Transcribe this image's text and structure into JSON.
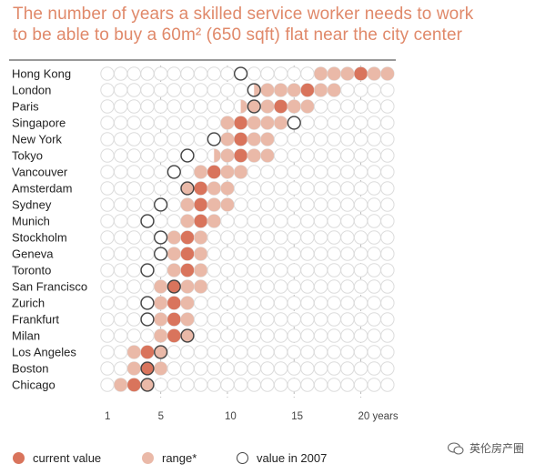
{
  "title_line1": "The number of years a skilled service worker needs to work",
  "title_line2": "to be able to buy a 60m² (650 sqft) flat near the city center",
  "colors": {
    "current": "#d9745c",
    "range": "#eab9a8",
    "empty_stroke": "#dcdcdc",
    "y2007_stroke": "#444444",
    "title": "#e0896a"
  },
  "legend": {
    "current_label": "current value",
    "range_label": "range*",
    "y2007_label": "value in 2007"
  },
  "watermark": "英伦房产圈",
  "chart_data": {
    "type": "scatter",
    "title": "The number of years a skilled service worker needs to work to be able to buy a 60m² (650 sqft) flat near the city center",
    "xlim": [
      1,
      22
    ],
    "x_ticks": [
      {
        "value": 1,
        "label": "1"
      },
      {
        "value": 5,
        "label": "5"
      },
      {
        "value": 10,
        "label": "10"
      },
      {
        "value": 15,
        "label": "15"
      },
      {
        "value": 20,
        "label": "20 years"
      }
    ],
    "cities": [
      {
        "name": "Hong Kong",
        "current": 20,
        "range": [
          17,
          22
        ],
        "y2007": 11
      },
      {
        "name": "London",
        "current": 16,
        "range": [
          12.5,
          18
        ],
        "y2007": 12
      },
      {
        "name": "Paris",
        "current": 14,
        "range": [
          11.5,
          16
        ],
        "y2007": 12
      },
      {
        "name": "Singapore",
        "current": 11,
        "range": [
          10,
          14
        ],
        "y2007": 15
      },
      {
        "name": "New York",
        "current": 11,
        "range": [
          10,
          13
        ],
        "y2007": 9
      },
      {
        "name": "Tokyo",
        "current": 11,
        "range": [
          9.5,
          13
        ],
        "y2007": 7
      },
      {
        "name": "Vancouver",
        "current": 9,
        "range": [
          8,
          11
        ],
        "y2007": 6
      },
      {
        "name": "Amsterdam",
        "current": 8,
        "range": [
          7,
          10
        ],
        "y2007": 7
      },
      {
        "name": "Sydney",
        "current": 8,
        "range": [
          7,
          10
        ],
        "y2007": 5
      },
      {
        "name": "Munich",
        "current": 8,
        "range": [
          7,
          9
        ],
        "y2007": 4
      },
      {
        "name": "Stockholm",
        "current": 7,
        "range": [
          6,
          8
        ],
        "y2007": 5
      },
      {
        "name": "Geneva",
        "current": 7,
        "range": [
          6,
          8
        ],
        "y2007": 5
      },
      {
        "name": "Toronto",
        "current": 7,
        "range": [
          6,
          8
        ],
        "y2007": 4
      },
      {
        "name": "San Francisco",
        "current": 6,
        "range": [
          5,
          8
        ],
        "y2007": 6
      },
      {
        "name": "Zurich",
        "current": 6,
        "range": [
          5,
          7
        ],
        "y2007": 4
      },
      {
        "name": "Frankfurt",
        "current": 6,
        "range": [
          5,
          7
        ],
        "y2007": 4
      },
      {
        "name": "Milan",
        "current": 6,
        "range": [
          5,
          7
        ],
        "y2007": 7
      },
      {
        "name": "Los Angeles",
        "current": 4,
        "range": [
          3,
          5
        ],
        "y2007": 5
      },
      {
        "name": "Boston",
        "current": 4,
        "range": [
          3,
          5
        ],
        "y2007": 4
      },
      {
        "name": "Chicago",
        "current": 3,
        "range": [
          2,
          4
        ],
        "y2007": 4
      }
    ]
  }
}
